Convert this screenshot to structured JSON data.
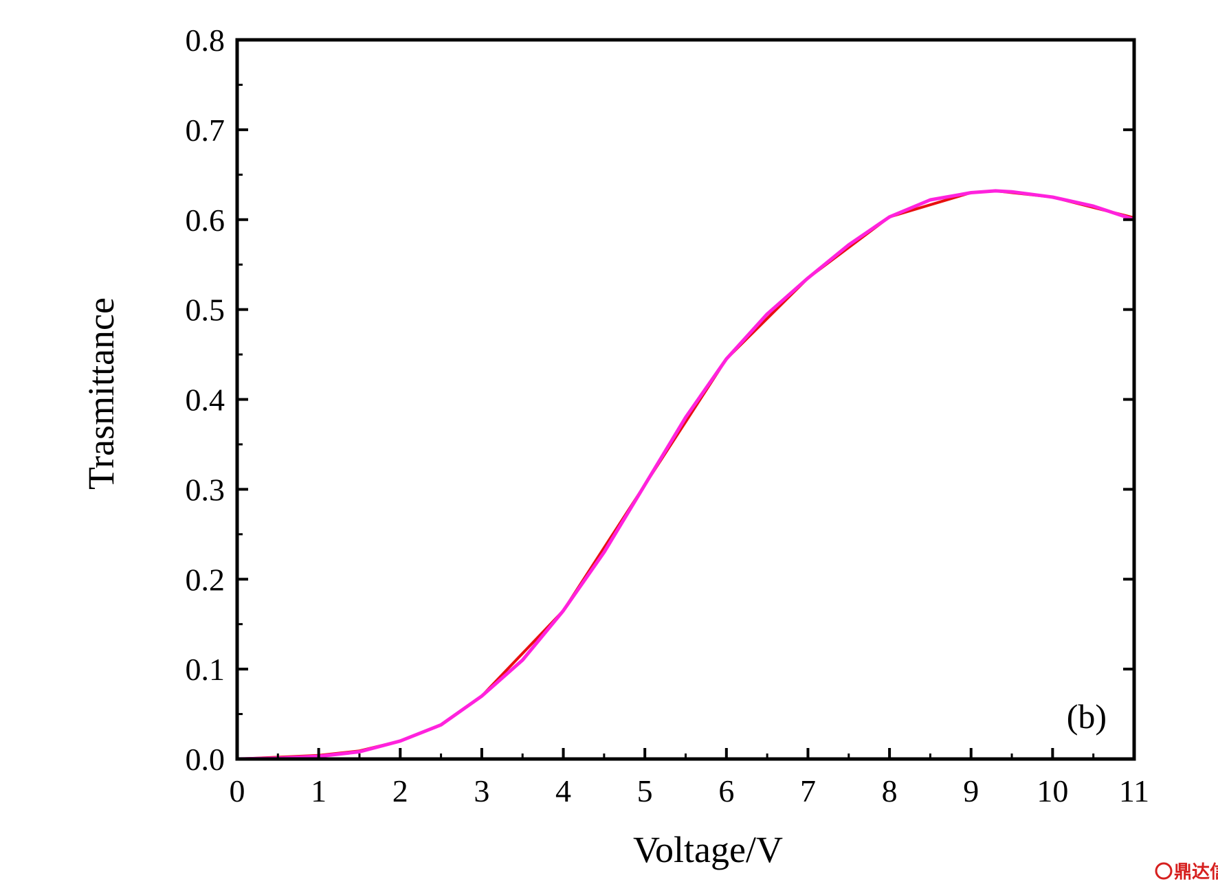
{
  "chart_data": {
    "type": "line",
    "title": "",
    "xlabel": "Voltage/V",
    "ylabel": "Trasmittance",
    "xlim": [
      0,
      11
    ],
    "ylim": [
      0,
      0.8
    ],
    "x_ticks": [
      "0",
      "1",
      "2",
      "3",
      "4",
      "5",
      "6",
      "7",
      "8",
      "9",
      "10",
      "11"
    ],
    "y_ticks": [
      "0.0",
      "0.1",
      "0.2",
      "0.3",
      "0.4",
      "0.5",
      "0.6",
      "0.7",
      "0.8"
    ],
    "grid": false,
    "legend": "none",
    "annotation": "(b)",
    "series": [
      {
        "color": "#ff22dd",
        "x": [
          0,
          0.5,
          1,
          1.5,
          2,
          2.5,
          3,
          3.5,
          4,
          4.5,
          5,
          5.5,
          6,
          6.5,
          7,
          7.5,
          8,
          8.5,
          9,
          9.3,
          9.5,
          10,
          10.5,
          11
        ],
        "y": [
          0.0,
          0.001,
          0.003,
          0.008,
          0.02,
          0.038,
          0.07,
          0.11,
          0.165,
          0.23,
          0.305,
          0.38,
          0.445,
          0.495,
          0.535,
          0.572,
          0.603,
          0.622,
          0.63,
          0.632,
          0.631,
          0.625,
          0.615,
          0.6
        ]
      },
      {
        "color": "#e81010",
        "x": [
          0,
          0.5,
          1,
          1.5,
          2,
          2.5,
          3,
          4,
          5,
          6,
          7,
          8,
          9,
          9.3,
          10,
          11
        ],
        "y": [
          0.0,
          0.002,
          0.004,
          0.009,
          0.02,
          0.038,
          0.07,
          0.165,
          0.305,
          0.445,
          0.535,
          0.603,
          0.63,
          0.632,
          0.625,
          0.602
        ]
      },
      {
        "color": "#22cc22",
        "x": [
          0,
          0.5,
          1,
          1.5,
          2
        ],
        "y": [
          0.0,
          0.0,
          0.0,
          0.0,
          0.0
        ]
      },
      {
        "color": "#2222cc",
        "x": [
          2,
          2.5,
          3
        ],
        "y": [
          0.0,
          0.0,
          0.0
        ]
      }
    ]
  },
  "watermark": {
    "text": "鼎达信",
    "color": "#d6201f"
  }
}
